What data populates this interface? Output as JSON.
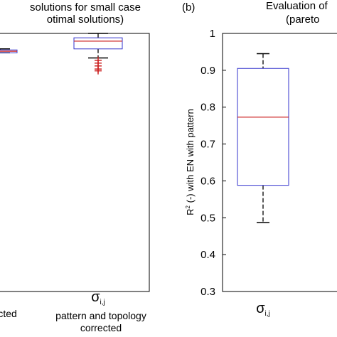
{
  "chart_data": [
    {
      "type": "boxplot",
      "title_line1": "solutions for small case",
      "title_line2": "otimal solutions)",
      "ylim": [
        0,
        1
      ],
      "grid": false,
      "categories": [
        {
          "id": "left",
          "label_lines": [
            "rrected"
          ]
        },
        {
          "id": "right",
          "symbol": "σ",
          "subscript": "i,j",
          "label_lines": [
            "pattern and topology",
            "corrected"
          ]
        }
      ],
      "boxes": [
        {
          "category": "left",
          "min": 0.925,
          "q1": 0.925,
          "median": 0.931,
          "q3": 0.936,
          "max": 0.94,
          "outliers": []
        },
        {
          "category": "right",
          "min": 0.905,
          "q1": 0.94,
          "median": 0.97,
          "q3": 0.983,
          "max": 1.0,
          "outliers": [
            0.896,
            0.885,
            0.874,
            0.862,
            0.855
          ]
        }
      ],
      "colors": {
        "box": "#3333cc",
        "median": "#cc2222",
        "outlier": "#cc2222",
        "whisker": "#000000"
      }
    },
    {
      "type": "boxplot",
      "panel_label": "(b)",
      "title_line1": "Evaluation of",
      "title_line2": "(pareto",
      "ylabel": "R² (-) with EN  with pattern",
      "ylabel_parts": {
        "r": "R",
        "sup": "2",
        "rest": " (-) with EN  with pattern"
      },
      "ylim": [
        0.3,
        1.0
      ],
      "yticks": [
        "0.3",
        "0.4",
        "0.5",
        "0.6",
        "0.7",
        "0.8",
        "0.9",
        "1"
      ],
      "categories": [
        {
          "id": "sigma",
          "symbol": "σ",
          "subscript": "i,j"
        }
      ],
      "boxes": [
        {
          "category": "sigma",
          "min": 0.487,
          "q1": 0.588,
          "median": 0.773,
          "q3": 0.905,
          "max": 0.945,
          "outliers": []
        }
      ],
      "grid": false,
      "colors": {
        "box": "#3333cc",
        "median": "#cc2222",
        "whisker": "#000000"
      }
    }
  ]
}
